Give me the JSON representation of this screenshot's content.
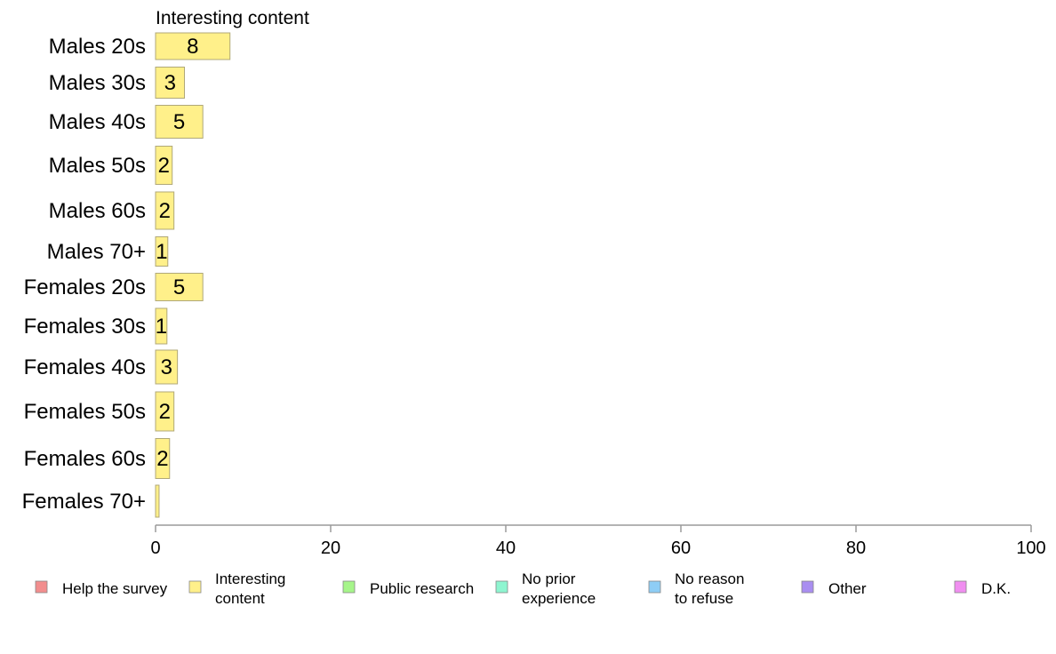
{
  "chart_data": {
    "type": "bar",
    "orientation": "horizontal",
    "series_header": "Interesting content",
    "categories": [
      "Males 20s",
      "Males 30s",
      "Males 40s",
      "Males 50s",
      "Males 60s",
      "Males 70+",
      "Females 20s",
      "Females 30s",
      "Females 40s",
      "Females 50s",
      "Females 60s",
      "Females 70+"
    ],
    "series": [
      {
        "name": "Interesting content",
        "color": "#fff08a",
        "values": [
          8.5,
          3.3,
          5.4,
          1.9,
          2.1,
          1.4,
          5.4,
          1.3,
          2.5,
          2.1,
          1.6,
          0.4
        ],
        "labels": [
          "8",
          "3",
          "5",
          "2",
          "2",
          "1",
          "5",
          "1",
          "3",
          "2",
          "2",
          ""
        ]
      }
    ],
    "xlim": [
      0,
      100
    ],
    "x_ticks": [
      "0",
      "20",
      "40",
      "60",
      "80",
      "100"
    ],
    "legend": {
      "placement": "bottom",
      "items": [
        {
          "lines": [
            "Help the survey"
          ],
          "color": "#f28e8e"
        },
        {
          "lines": [
            "Interesting",
            "content"
          ],
          "color": "#fff08a"
        },
        {
          "lines": [
            "Public research"
          ],
          "color": "#a6f58a"
        },
        {
          "lines": [
            "No prior",
            "experience"
          ],
          "color": "#8ef5d0"
        },
        {
          "lines": [
            "No reason",
            "to refuse"
          ],
          "color": "#8ecdf5"
        },
        {
          "lines": [
            "Other"
          ],
          "color": "#a98ef0"
        },
        {
          "lines": [
            "D.K."
          ],
          "color": "#f08ef0"
        }
      ]
    }
  }
}
